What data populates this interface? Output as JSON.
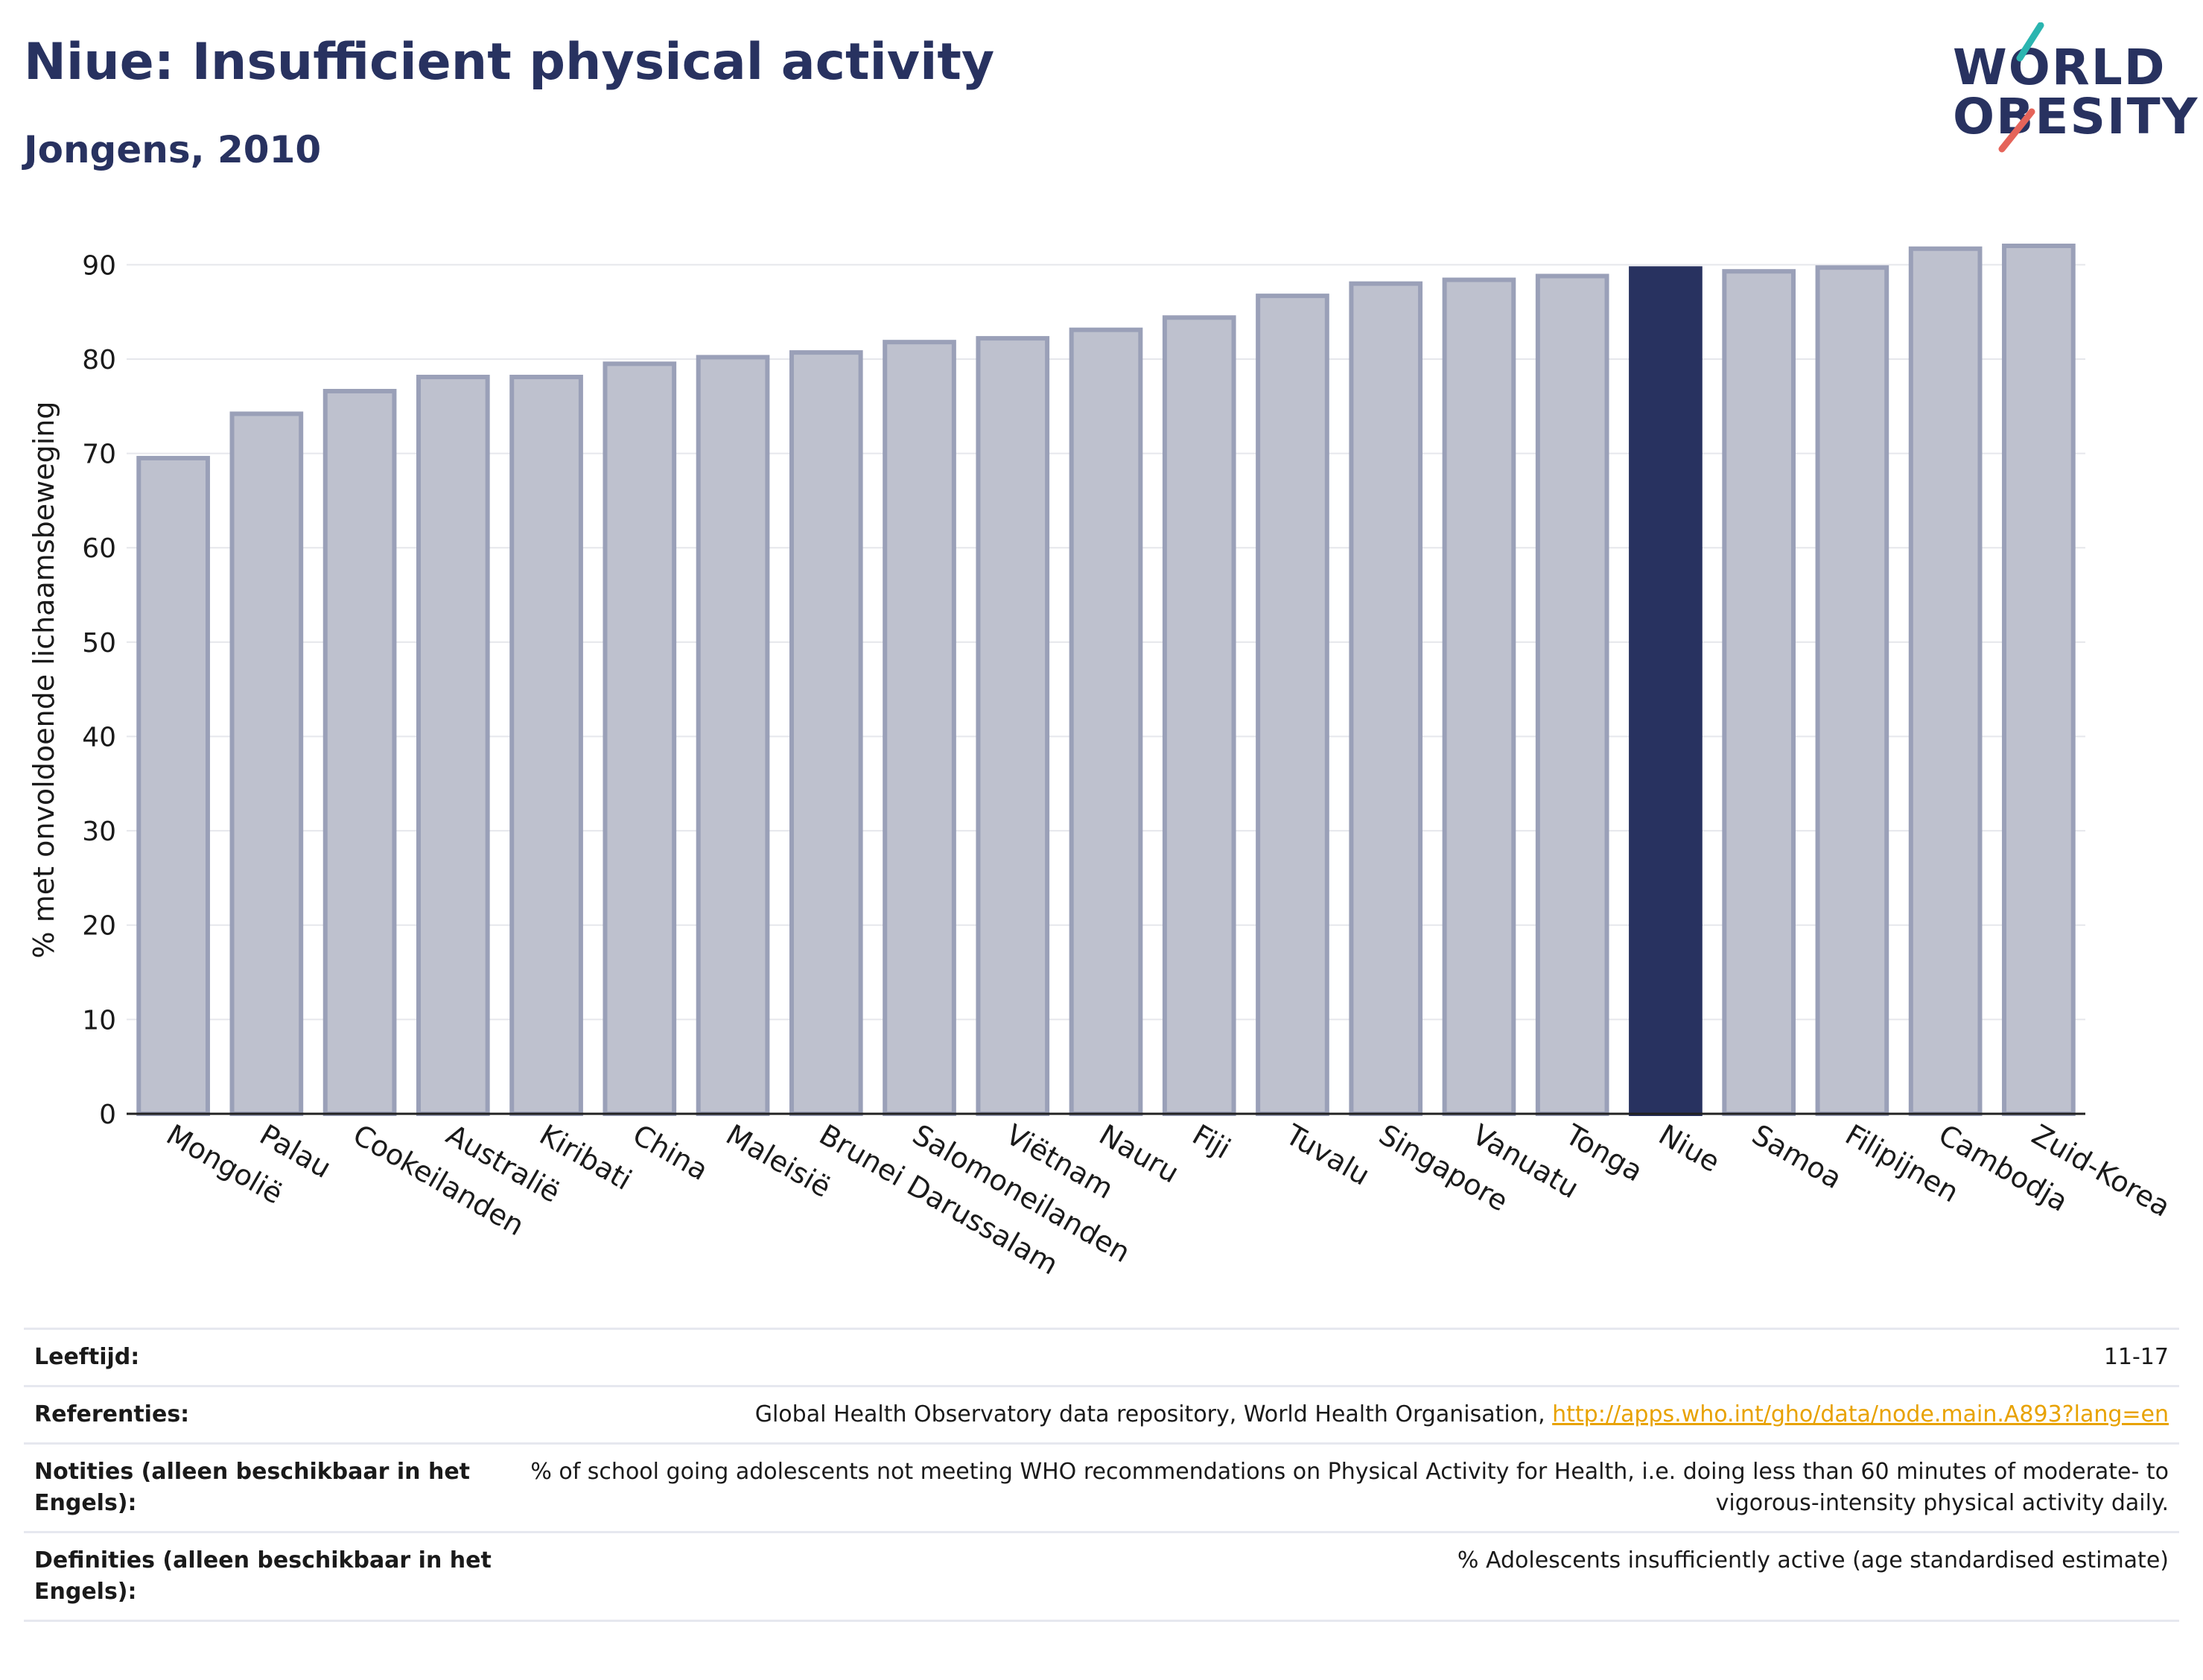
{
  "header": {
    "title": "Niue: Insufficient physical activity",
    "subtitle": "Jongens, 2010"
  },
  "logo": {
    "line1": "WORLD",
    "line2": "OBESITY",
    "colors": {
      "text": "#283260",
      "teal": "#2bb5b0",
      "coral": "#e5645a"
    }
  },
  "colors": {
    "bar_default": "#bec1ce",
    "bar_border": "#9aa0b8",
    "bar_highlight": "#283260",
    "grid": "#e6e7ec",
    "link": "#e8a200"
  },
  "chart_data": {
    "type": "bar",
    "ylabel": "% met onvoldoende lichaamsbeweging",
    "ylim": [
      0,
      92
    ],
    "yticks": [
      0,
      10,
      20,
      30,
      40,
      50,
      60,
      70,
      80,
      90
    ],
    "grid": true,
    "highlight": "Niue",
    "categories": [
      "Mongolië",
      "Palau",
      "Cookeilanden",
      "Australië",
      "Kiribati",
      "China",
      "Maleisië",
      "Brunei Darussalam",
      "Salomoneilanden",
      "Viëtnam",
      "Nauru",
      "Fiji",
      "Tuvalu",
      "Singapore",
      "Vanuatu",
      "Tonga",
      "Niue",
      "Samoa",
      "Filipijnen",
      "Cambodja",
      "Zuid-Korea"
    ],
    "values": [
      69.5,
      74.2,
      76.6,
      78.1,
      78.1,
      79.5,
      80.2,
      80.7,
      81.8,
      82.2,
      83.1,
      84.4,
      86.7,
      88.0,
      88.4,
      88.8,
      89.6,
      89.3,
      89.7,
      91.7,
      92.0
    ]
  },
  "meta": {
    "age_label": "Leeftijd:",
    "age_value": "11-17",
    "refs_label": "Referenties:",
    "refs_text": "Global Health Observatory data repository, World Health Organisation, ",
    "refs_link": "http://apps.who.int/gho/data/node.main.A893?lang=en",
    "notes_label": "Notities (alleen beschikbaar in het Engels):",
    "notes_value": "% of school going adolescents not meeting WHO recommendations on Physical Activity for Health, i.e. doing less than 60 minutes of moderate- to vigorous-intensity physical activity daily.",
    "defs_label": "Definities (alleen beschikbaar in het Engels):",
    "defs_value": "% Adolescents insufficiently active (age standardised estimate)"
  }
}
